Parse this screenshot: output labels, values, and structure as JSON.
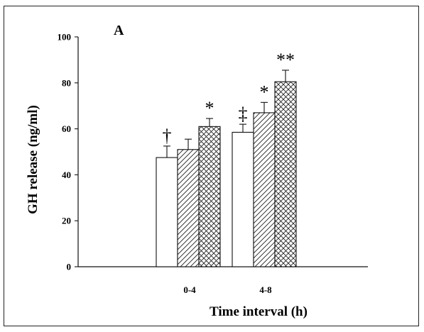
{
  "panel_label": "A",
  "chart_data": {
    "type": "bar",
    "xlabel": "Time interval (h)",
    "ylabel": "GH release (ng/ml)",
    "ylim": [
      0,
      100
    ],
    "yticks": [
      0,
      20,
      40,
      60,
      80,
      100
    ],
    "categories": [
      "0-4",
      "4-8"
    ],
    "legend": "none",
    "grid": false,
    "series": [
      {
        "pattern": "open",
        "values": [
          47.5,
          58.5
        ],
        "errors": [
          5.0,
          3.5
        ],
        "annotations": [
          "†",
          "‡"
        ]
      },
      {
        "pattern": "hatched",
        "values": [
          51.0,
          67.0
        ],
        "errors": [
          4.5,
          4.5
        ],
        "annotations": [
          "",
          "*"
        ]
      },
      {
        "pattern": "cross-hatched",
        "values": [
          61.0,
          80.5
        ],
        "errors": [
          3.5,
          5.0
        ],
        "annotations": [
          "*",
          "**"
        ]
      }
    ]
  }
}
